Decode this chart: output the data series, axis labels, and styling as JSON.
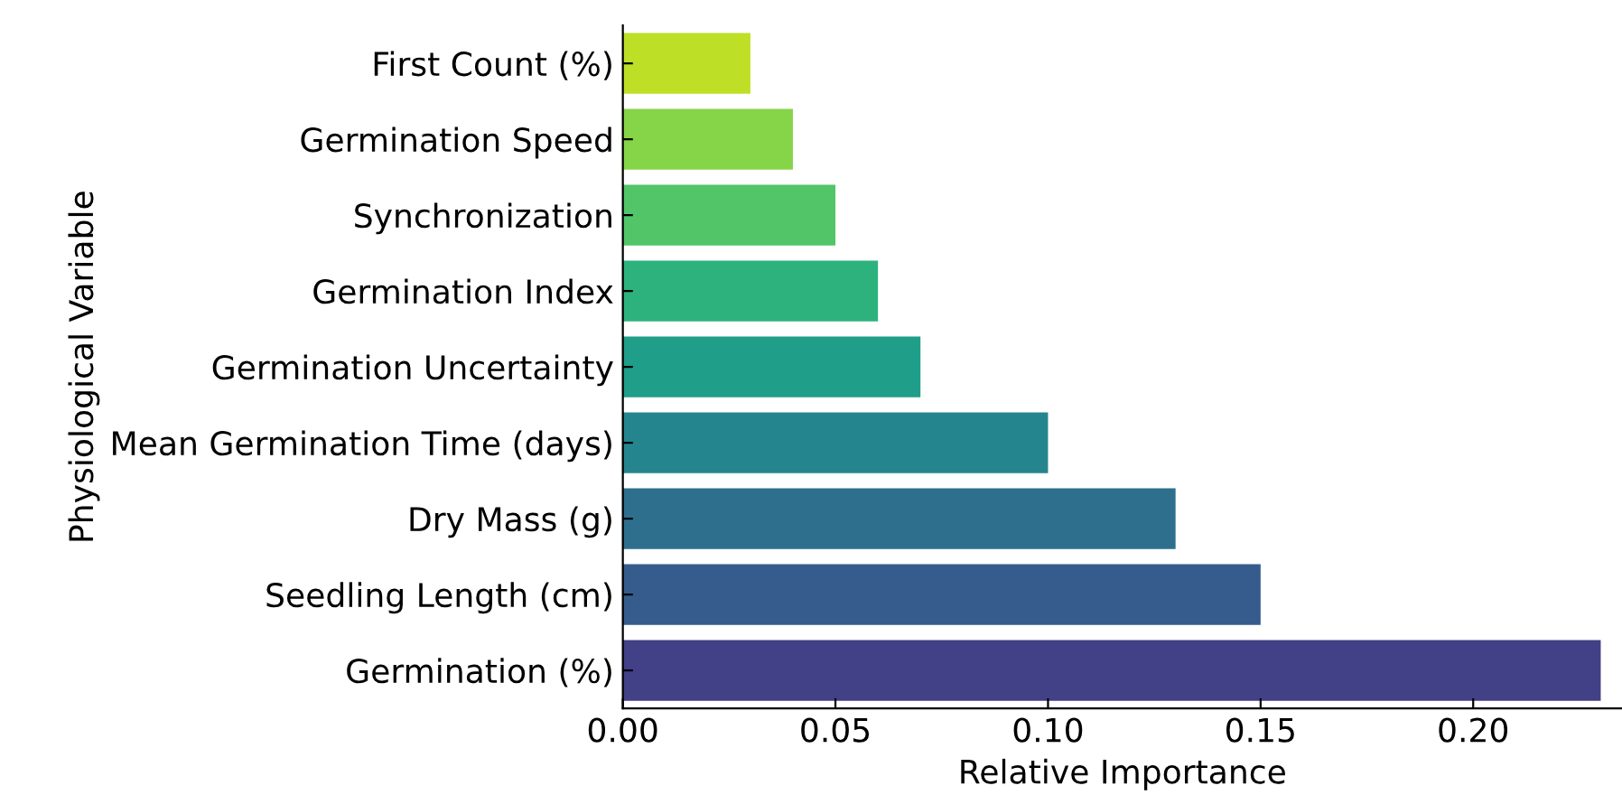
{
  "chart_data": {
    "type": "bar",
    "orientation": "horizontal",
    "xlabel": "Relative Importance",
    "ylabel": "Physiological Variable",
    "categories": [
      "First Count (%)",
      "Germination Speed",
      "Synchronization",
      "Germination Index",
      "Germination Uncertainty",
      "Mean Germination Time (days)",
      "Dry Mass (g)",
      "Seedling Length (cm)",
      "Germination (%)"
    ],
    "values": [
      0.03,
      0.04,
      0.05,
      0.06,
      0.07,
      0.1,
      0.13,
      0.15,
      0.23
    ],
    "colors": [
      "#bddf26",
      "#86d549",
      "#52c569",
      "#2db27d",
      "#1f9e89",
      "#25858e",
      "#2e6f8e",
      "#365c8d",
      "#424086"
    ],
    "xlim": [
      0,
      0.235
    ],
    "xticks": [
      {
        "value": 0,
        "label": "0.00"
      },
      {
        "value": 0.05,
        "label": "0.05"
      },
      {
        "value": 0.1,
        "label": "0.10"
      },
      {
        "value": 0.15,
        "label": "0.15"
      },
      {
        "value": 0.2,
        "label": "0.20"
      }
    ],
    "grid": false,
    "legend": false
  }
}
